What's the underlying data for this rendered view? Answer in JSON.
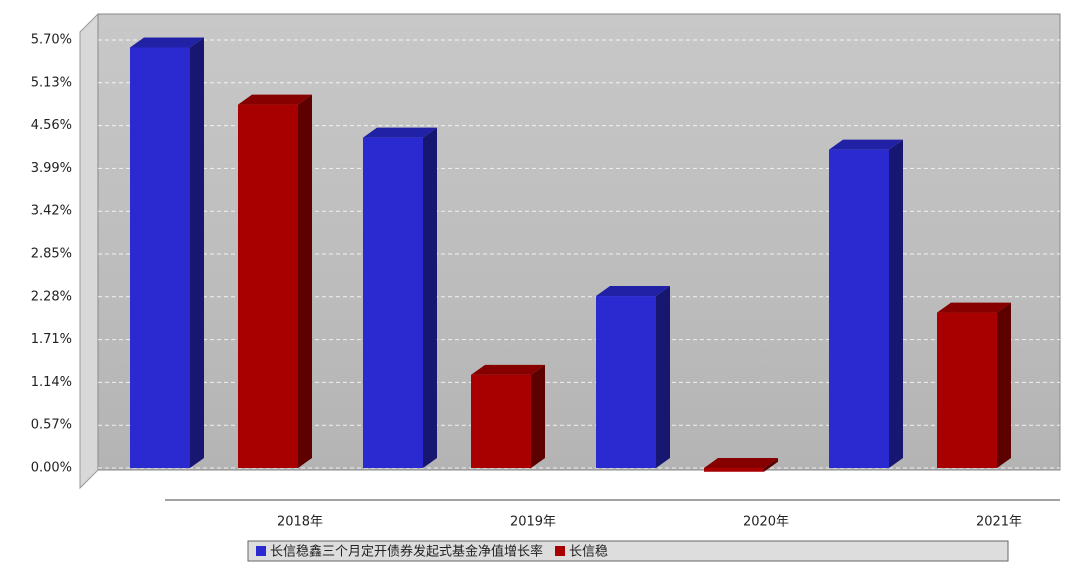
{
  "chart_data": {
    "type": "bar",
    "categories": [
      "2018年",
      "2019年",
      "2020年",
      "2021年"
    ],
    "series": [
      {
        "name": "长信稳鑫三个月定开债券发起式基金净值增长率",
        "color": "#2a2ad0",
        "values": [
          5.6,
          4.4,
          2.29,
          4.24
        ]
      },
      {
        "name": "长信稳",
        "color": "#a80000",
        "values": [
          4.84,
          1.24,
          -0.05,
          2.07
        ]
      }
    ],
    "ylim": [
      -0.1,
      5.9
    ],
    "yticks": [
      {
        "value": 0,
        "label": "0.00%"
      },
      {
        "value": 0.57,
        "label": "0.57%"
      },
      {
        "value": 1.14,
        "label": "1.14%"
      },
      {
        "value": 1.71,
        "label": "1.71%"
      },
      {
        "value": 2.28,
        "label": "2.28%"
      },
      {
        "value": 2.85,
        "label": "2.85%"
      },
      {
        "value": 3.42,
        "label": "3.42%"
      },
      {
        "value": 3.99,
        "label": "3.99%"
      },
      {
        "value": 4.56,
        "label": "4.56%"
      },
      {
        "value": 5.13,
        "label": "5.13%"
      },
      {
        "value": 5.7,
        "label": "5.70%"
      }
    ],
    "grid": true
  }
}
